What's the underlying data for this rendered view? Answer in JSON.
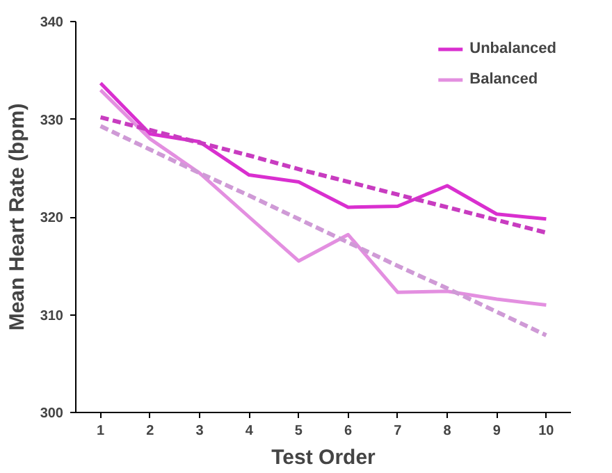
{
  "chart_data": {
    "type": "line",
    "xlabel": "Test Order",
    "ylabel": "Mean Heart Rate (bpm)",
    "x": [
      1,
      2,
      3,
      4,
      5,
      6,
      7,
      8,
      9,
      10
    ],
    "xlim": [
      0.5,
      10.5
    ],
    "xticks": [
      1,
      2,
      3,
      4,
      5,
      6,
      7,
      8,
      9,
      10
    ],
    "ylim": [
      300,
      340
    ],
    "yticks": [
      300,
      310,
      320,
      330,
      340
    ],
    "grid": false,
    "legend": "top right",
    "marker": "none",
    "series": [
      {
        "name": "Unbalanced",
        "color": "#d92fcf",
        "values": [
          333.7,
          328.5,
          327.7,
          324.3,
          323.6,
          321.0,
          321.1,
          323.2,
          320.3,
          319.8
        ]
      },
      {
        "name": "Balanced",
        "color": "#e38fe0",
        "values": [
          333.0,
          328.0,
          324.5,
          320.0,
          315.5,
          318.2,
          312.3,
          312.4,
          311.6,
          311.0
        ]
      },
      {
        "type": "line",
        "color": "#c83cc0",
        "line_style": "dashed",
        "values": [
          330.2,
          328.9,
          327.6,
          326.3,
          324.9,
          323.6,
          322.3,
          321.0,
          319.7,
          318.4
        ]
      },
      {
        "type": "line",
        "color": "#cf9ad6",
        "line_style": "dashed",
        "values": [
          329.3,
          326.9,
          324.5,
          322.2,
          319.8,
          317.4,
          315.0,
          312.7,
          310.3,
          307.9
        ]
      }
    ]
  }
}
